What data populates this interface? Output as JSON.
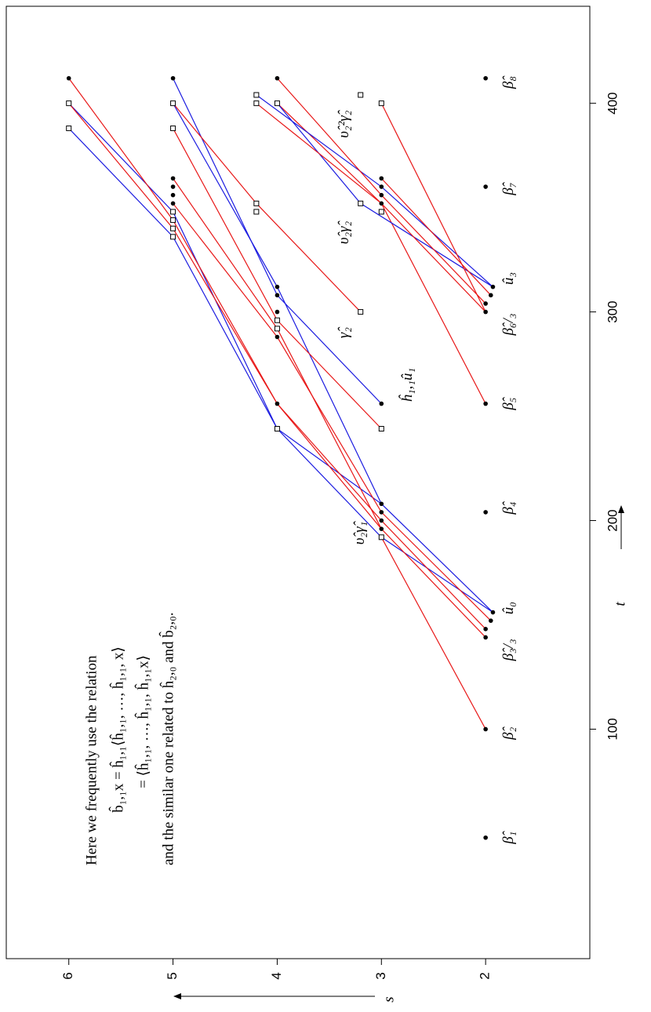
{
  "chart_data": {
    "type": "adams-chart",
    "xlabel": "t",
    "ylabel": "s",
    "xlim": [
      -10,
      446.5
    ],
    "ylim": [
      1,
      6.6
    ],
    "xticks": [
      100,
      200,
      300,
      400
    ],
    "yticks": [
      2,
      3,
      4,
      5,
      6
    ],
    "note": [
      "Here we frequently use the relation",
      "b̂₁,₁x = ĥ₁,₁⟨ĥ₁,₁, …, ĥ₁,₁, x⟩",
      "= ⟨ĥ₁,₁, …, ĥ₁,₁, ĥ₁,₁x⟩",
      "and the similar one related to ĥ₂,₀ and b̂₂,₀."
    ],
    "points": [
      {
        "t": 48,
        "s": 2,
        "marker": "dot"
      },
      {
        "t": 100,
        "s": 2,
        "marker": "dot"
      },
      {
        "t": 144,
        "s": 2,
        "marker": "dot"
      },
      {
        "t": 148,
        "s": 2,
        "marker": "dot"
      },
      {
        "t": 152,
        "s": 1.95,
        "marker": "dot"
      },
      {
        "t": 156,
        "s": 1.93,
        "marker": "dot"
      },
      {
        "t": 204,
        "s": 2,
        "marker": "dot"
      },
      {
        "t": 256,
        "s": 2,
        "marker": "dot"
      },
      {
        "t": 300,
        "s": 2,
        "marker": "dot"
      },
      {
        "t": 304,
        "s": 2,
        "marker": "dot"
      },
      {
        "t": 308,
        "s": 1.95,
        "marker": "dot"
      },
      {
        "t": 312,
        "s": 1.93,
        "marker": "dot"
      },
      {
        "t": 360,
        "s": 2,
        "marker": "dot"
      },
      {
        "t": 412,
        "s": 2,
        "marker": "dot"
      },
      {
        "t": 196,
        "s": 3,
        "marker": "dot"
      },
      {
        "t": 200,
        "s": 3,
        "marker": "dot"
      },
      {
        "t": 204,
        "s": 3,
        "marker": "dot"
      },
      {
        "t": 208,
        "s": 3,
        "marker": "dot"
      },
      {
        "t": 256,
        "s": 3,
        "marker": "dot"
      },
      {
        "t": 352,
        "s": 3,
        "marker": "dot"
      },
      {
        "t": 356,
        "s": 3,
        "marker": "dot"
      },
      {
        "t": 360,
        "s": 3,
        "marker": "dot"
      },
      {
        "t": 364,
        "s": 3,
        "marker": "dot"
      },
      {
        "t": 192,
        "s": 3,
        "marker": "square"
      },
      {
        "t": 244,
        "s": 3,
        "marker": "square"
      },
      {
        "t": 348,
        "s": 3,
        "marker": "square"
      },
      {
        "t": 400,
        "s": 3,
        "marker": "square"
      },
      {
        "t": 300,
        "s": 3.2,
        "marker": "square"
      },
      {
        "t": 352,
        "s": 3.2,
        "marker": "square"
      },
      {
        "t": 404,
        "s": 3.2,
        "marker": "square"
      },
      {
        "t": 256,
        "s": 4,
        "marker": "dot"
      },
      {
        "t": 288,
        "s": 4,
        "marker": "dot"
      },
      {
        "t": 300,
        "s": 4,
        "marker": "dot"
      },
      {
        "t": 308,
        "s": 4,
        "marker": "dot"
      },
      {
        "t": 312,
        "s": 4,
        "marker": "dot"
      },
      {
        "t": 412,
        "s": 4,
        "marker": "dot"
      },
      {
        "t": 244,
        "s": 4,
        "marker": "square"
      },
      {
        "t": 292,
        "s": 4,
        "marker": "square"
      },
      {
        "t": 296,
        "s": 4,
        "marker": "square"
      },
      {
        "t": 400,
        "s": 4,
        "marker": "square"
      },
      {
        "t": 348,
        "s": 4.2,
        "marker": "square"
      },
      {
        "t": 352,
        "s": 4.2,
        "marker": "square"
      },
      {
        "t": 400,
        "s": 4.2,
        "marker": "square"
      },
      {
        "t": 404,
        "s": 4.2,
        "marker": "square"
      },
      {
        "t": 352,
        "s": 5,
        "marker": "dot"
      },
      {
        "t": 356,
        "s": 5,
        "marker": "dot"
      },
      {
        "t": 360,
        "s": 5,
        "marker": "dot"
      },
      {
        "t": 364,
        "s": 5,
        "marker": "dot"
      },
      {
        "t": 412,
        "s": 5,
        "marker": "dot"
      },
      {
        "t": 336,
        "s": 5,
        "marker": "square"
      },
      {
        "t": 340,
        "s": 5,
        "marker": "square"
      },
      {
        "t": 344,
        "s": 5,
        "marker": "square"
      },
      {
        "t": 348,
        "s": 5,
        "marker": "square"
      },
      {
        "t": 388,
        "s": 5,
        "marker": "square"
      },
      {
        "t": 400,
        "s": 5,
        "marker": "square"
      },
      {
        "t": 412,
        "s": 6,
        "marker": "dot"
      },
      {
        "t": 388,
        "s": 6,
        "marker": "square"
      },
      {
        "t": 400,
        "s": 6,
        "marker": "square"
      }
    ],
    "lines": [
      {
        "color": "#1c1ce0",
        "t": [
          156,
          192,
          244,
          348,
          400
        ],
        "s": [
          1.93,
          3,
          4,
          5,
          6
        ]
      },
      {
        "color": "#1c1ce0",
        "t": [
          156,
          208,
          244,
          336,
          388
        ],
        "s": [
          1.93,
          3,
          4,
          5,
          6
        ]
      },
      {
        "color": "#e81818",
        "t": [
          144,
          196,
          256,
          340,
          400
        ],
        "s": [
          2,
          3,
          4,
          5,
          6
        ]
      },
      {
        "color": "#e81818",
        "t": [
          148,
          200,
          256,
          344,
          412
        ],
        "s": [
          2,
          3,
          4,
          5,
          6
        ]
      },
      {
        "color": "#e81818",
        "t": [
          152,
          204,
          288,
          352
        ],
        "s": [
          1.95,
          3,
          4,
          5
        ]
      },
      {
        "color": "#e81818",
        "t": [
          100,
          192
        ],
        "s": [
          2,
          3
        ]
      },
      {
        "color": "#e81818",
        "t": [
          196,
          292,
          364
        ],
        "s": [
          3,
          4,
          5
        ]
      },
      {
        "color": "#1c1ce0",
        "t": [
          208,
          312,
          400
        ],
        "s": [
          3,
          4,
          5
        ]
      },
      {
        "color": "#e81818",
        "t": [
          244,
          296,
          388
        ],
        "s": [
          3,
          4,
          5
        ]
      },
      {
        "color": "#e81818",
        "t": [
          256,
          352,
          400
        ],
        "s": [
          2,
          3,
          4
        ]
      },
      {
        "color": "#1c1ce0",
        "t": [
          256,
          308,
          412
        ],
        "s": [
          3,
          4,
          5
        ]
      },
      {
        "color": "#e81818",
        "t": [
          300,
          352,
          400
        ],
        "s": [
          3.2,
          4.2,
          5
        ]
      },
      {
        "color": "#1c1ce0",
        "t": [
          312,
          360,
          404
        ],
        "s": [
          1.93,
          3,
          4.2
        ]
      },
      {
        "color": "#1c1ce0",
        "t": [
          312,
          352,
          400
        ],
        "s": [
          1.93,
          3.2,
          4
        ]
      },
      {
        "color": "#e81818",
        "t": [
          300,
          352,
          400
        ],
        "s": [
          2,
          3,
          4.2
        ]
      },
      {
        "color": "#e81818",
        "t": [
          304,
          356,
          412
        ],
        "s": [
          2,
          3,
          4
        ]
      },
      {
        "color": "#e81818",
        "t": [
          300,
          400
        ],
        "s": [
          2,
          3
        ]
      },
      {
        "color": "#e81818",
        "t": [
          308,
          364
        ],
        "s": [
          1.95,
          3
        ]
      }
    ],
    "annotations": [
      {
        "text": "β̂₁",
        "t": 48,
        "s": 1.77
      },
      {
        "text": "β̂₂",
        "t": 98,
        "s": 1.77
      },
      {
        "text": "β̂₃/₃",
        "t": 138,
        "s": 1.77
      },
      {
        "text": "û₀",
        "t": 158,
        "s": 1.77
      },
      {
        "text": "υ̂₂γ̂₁",
        "t": 194,
        "s": 3.2
      },
      {
        "text": "β̂₄",
        "t": 206,
        "s": 1.77
      },
      {
        "text": "β̂₅",
        "t": 256,
        "s": 1.77
      },
      {
        "text": "ĥ₁,₁û₁",
        "t": 265,
        "s": 2.74
      },
      {
        "text": "β̂₆/₃",
        "t": 294,
        "s": 1.77
      },
      {
        "text": "γ̂₂",
        "t": 290,
        "s": 3.35
      },
      {
        "text": "û₃",
        "t": 316,
        "s": 1.77
      },
      {
        "text": "υ̂₂γ̂₂",
        "t": 338,
        "s": 3.35
      },
      {
        "text": "β̂₇",
        "t": 359,
        "s": 1.77
      },
      {
        "text": "υ̂₂²γ̂₂",
        "t": 390,
        "s": 3.35
      },
      {
        "text": "β̂₈",
        "t": 410,
        "s": 1.77
      }
    ]
  }
}
